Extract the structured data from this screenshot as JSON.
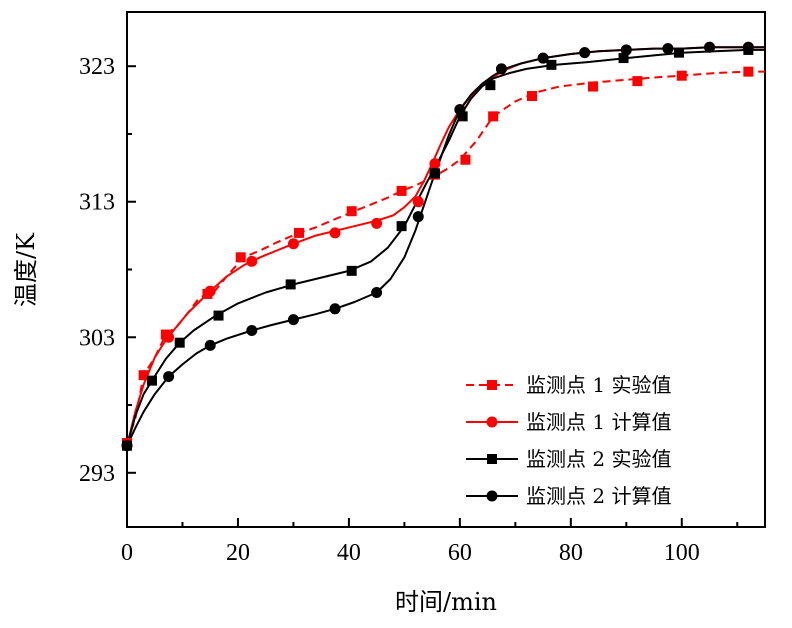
{
  "chart_data": {
    "type": "line",
    "xlabel": "时间/min",
    "ylabel": "温度/K",
    "xlim": [
      0,
      115
    ],
    "ylim": [
      289,
      327
    ],
    "xticks": [
      0,
      20,
      40,
      60,
      80,
      100
    ],
    "yticks": [
      293,
      303,
      313,
      323
    ],
    "grid": false,
    "legend_position": "bottom-right",
    "series": [
      {
        "name": "监测点 1 实验值",
        "color": "#ff0000",
        "line": "dashed",
        "marker": "square",
        "x": [
          0,
          1.5,
          3,
          5,
          7,
          9,
          11,
          13,
          14.5,
          16,
          18,
          21,
          24,
          27,
          31,
          34,
          38,
          41,
          44,
          47,
          49.5,
          52,
          54,
          56,
          58,
          60,
          63,
          66,
          70,
          74,
          78,
          84,
          90,
          96,
          100,
          106,
          112,
          115
        ],
        "y": [
          295.2,
          297,
          300.2,
          301.5,
          303.2,
          303.8,
          304.8,
          305.9,
          306.2,
          306.5,
          307.5,
          308.9,
          309.4,
          310,
          310.7,
          311.1,
          311.8,
          312.3,
          312.8,
          313.3,
          313.8,
          314.2,
          314.6,
          315,
          315.5,
          316.1,
          317.5,
          319.3,
          320.4,
          321.1,
          321.5,
          321.8,
          322,
          322.2,
          322.3,
          322.5,
          322.6,
          322.6
        ],
        "marker_x": [
          0,
          3,
          7,
          14.5,
          20.5,
          31,
          40.5,
          49.5,
          55.5,
          61,
          66,
          73,
          84,
          92,
          100,
          112
        ],
        "marker_y": [
          295.2,
          300.2,
          303.2,
          306.2,
          308.9,
          310.7,
          312.3,
          313.8,
          315,
          316.1,
          319.3,
          320.8,
          321.5,
          321.9,
          322.3,
          322.6
        ]
      },
      {
        "name": "监测点 1 计算值",
        "color": "#ff0000",
        "line": "solid",
        "marker": "circle",
        "x": [
          0,
          1.5,
          3,
          5,
          7,
          9,
          11,
          13,
          15,
          18,
          21,
          24,
          27,
          30,
          34,
          38,
          42,
          45,
          48,
          50,
          52,
          53.5,
          55,
          56.5,
          58,
          60,
          62,
          64,
          66,
          68,
          71,
          75,
          80,
          85,
          90,
          95,
          100,
          105,
          110,
          115
        ],
        "y": [
          295,
          297.5,
          299.5,
          301.5,
          302.8,
          303.8,
          304.8,
          305.6,
          306.4,
          307.5,
          308.3,
          308.9,
          309.4,
          309.9,
          310.5,
          310.9,
          311.3,
          311.6,
          312,
          312.6,
          313.4,
          314.5,
          315.8,
          317.2,
          318.5,
          319.8,
          320.8,
          321.6,
          322.2,
          322.7,
          323.2,
          323.6,
          323.9,
          324.1,
          324.2,
          324.3,
          324.3,
          324.4,
          324.4,
          324.4
        ],
        "marker_x": [
          0,
          7.5,
          15,
          22.5,
          30,
          37.5,
          45,
          52.5,
          55.5,
          60,
          67.5,
          75,
          82.5,
          90,
          97.5,
          105,
          112
        ],
        "marker_y": [
          295,
          303,
          306.4,
          308.6,
          309.9,
          310.7,
          311.4,
          313,
          315.8,
          319.8,
          322.8,
          323.6,
          324,
          324.2,
          324.3,
          324.4,
          324.4
        ]
      },
      {
        "name": "监测点 2 实验值",
        "color": "#000000",
        "line": "solid",
        "marker": "square",
        "x": [
          0,
          1.5,
          3,
          4.5,
          7,
          9.5,
          12,
          16,
          20,
          25,
          30,
          35,
          40,
          44,
          47,
          50,
          52,
          54,
          56,
          58,
          60,
          62,
          64,
          66,
          69,
          72,
          77,
          83,
          90,
          95,
          100,
          106,
          112,
          115
        ],
        "y": [
          295,
          297.2,
          298.8,
          299.8,
          301.4,
          302.6,
          303.5,
          304.6,
          305.5,
          306.3,
          306.9,
          307.4,
          307.9,
          308.6,
          309.6,
          311.2,
          312.8,
          314.4,
          315.9,
          317.5,
          319.3,
          320.6,
          321.5,
          322.1,
          322.5,
          322.8,
          323.1,
          323.3,
          323.6,
          323.8,
          324,
          324.1,
          324.2,
          324.2
        ],
        "marker_x": [
          0,
          4.5,
          9.5,
          16.5,
          29.5,
          40.5,
          49.5,
          55.5,
          60.5,
          65.5,
          76.5,
          89.5,
          99.5,
          112
        ],
        "marker_y": [
          295,
          299.8,
          302.6,
          304.6,
          306.9,
          307.9,
          311.2,
          315.1,
          319.3,
          321.6,
          323.1,
          323.6,
          324,
          324.2
        ]
      },
      {
        "name": "监测点 2 计算值",
        "color": "#000000",
        "line": "solid",
        "marker": "circle",
        "x": [
          0,
          1.5,
          3,
          5,
          7.5,
          10,
          12.5,
          15,
          18,
          22.5,
          26,
          30,
          34,
          37.5,
          41,
          45,
          47.5,
          50,
          52,
          53.5,
          55,
          56.5,
          58,
          60,
          62,
          64,
          66,
          68,
          71,
          75,
          80,
          85,
          90,
          95,
          100,
          105,
          110,
          115
        ],
        "y": [
          295,
          296.3,
          297.5,
          298.8,
          300.1,
          301,
          301.8,
          302.4,
          302.9,
          303.5,
          303.9,
          304.3,
          304.7,
          305.1,
          305.6,
          306.3,
          307.3,
          308.9,
          310.9,
          312.7,
          314.5,
          316.2,
          317.9,
          319.8,
          320.9,
          321.7,
          322.3,
          322.8,
          323.2,
          323.6,
          323.9,
          324.1,
          324.2,
          324.3,
          324.3,
          324.4,
          324.4,
          324.4
        ],
        "marker_x": [
          0,
          7.5,
          15,
          22.5,
          30,
          37.5,
          45,
          52.5,
          55.5,
          60,
          67.5,
          75,
          82.5,
          90,
          97.5,
          105,
          112
        ],
        "marker_y": [
          295,
          300.1,
          302.4,
          303.5,
          304.3,
          305.1,
          306.3,
          311.9,
          315.1,
          319.8,
          322.8,
          323.6,
          324,
          324.2,
          324.3,
          324.4,
          324.4
        ]
      }
    ]
  }
}
